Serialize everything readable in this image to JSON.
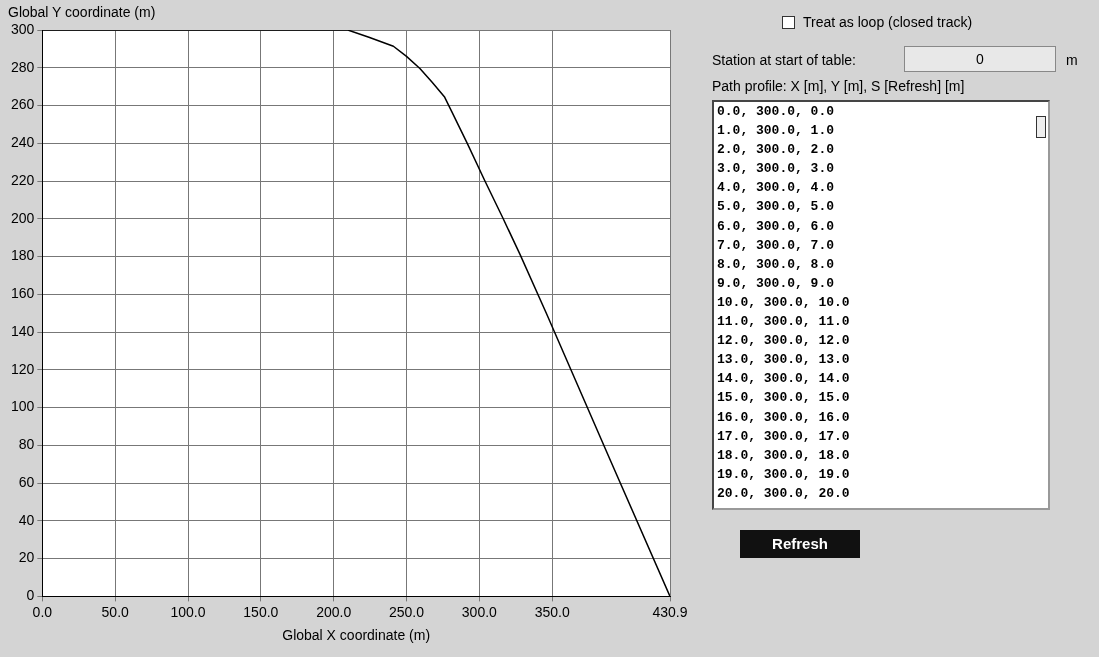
{
  "chart_data": {
    "type": "line",
    "xlabel": "Global X coordinate (m)",
    "ylabel": "Global Y coordinate (m)",
    "x": [
      0,
      100,
      209.7,
      224.2,
      241,
      250,
      259.2,
      267.6,
      276,
      280.9,
      291.8,
      303.6,
      316,
      328,
      346,
      390,
      430.9
    ],
    "series": [
      {
        "color": "#000000",
        "values": [
          300,
          300,
          300,
          296.2,
          291.4,
          286,
          279.6,
          272.3,
          264.7,
          257,
          239.8,
          220.4,
          200.7,
          181,
          150,
          72,
          0
        ]
      }
    ],
    "xlim": [
      0,
      430.9
    ],
    "xticks": [
      {
        "value": 0,
        "label": "0.0"
      },
      {
        "value": 50,
        "label": "50.0"
      },
      {
        "value": 100,
        "label": "100.0"
      },
      {
        "value": 150,
        "label": "150.0"
      },
      {
        "value": 200,
        "label": "200.0"
      },
      {
        "value": 250,
        "label": "250.0"
      },
      {
        "value": 300,
        "label": "300.0"
      },
      {
        "value": 350,
        "label": "350.0"
      },
      {
        "value": 430.9,
        "label": "430.9"
      }
    ],
    "ylim": [
      0,
      300
    ],
    "yticks": [
      0,
      20,
      40,
      60,
      80,
      100,
      120,
      140,
      160,
      180,
      200,
      220,
      240,
      260,
      280,
      300
    ],
    "grid": true,
    "legend": false,
    "marker": "none",
    "line_style": "solid",
    "annotations": [
      "Treat as loop (closed track)",
      "Station at start of table:",
      "0",
      "m",
      "Path profile: X [m], Y [m], S [Refresh] [m]",
      "0.0, 300.0, 0.0",
      "1.0, 300.0, 1.0",
      "2.0, 300.0, 2.0",
      "3.0, 300.0, 3.0",
      "4.0, 300.0, 4.0",
      "5.0, 300.0, 5.0",
      "6.0, 300.0, 6.0",
      "7.0, 300.0, 7.0",
      "8.0, 300.0, 8.0",
      "9.0, 300.0, 9.0",
      "10.0, 300.0, 10.0",
      "11.0, 300.0, 11.0",
      "12.0, 300.0, 12.0",
      "13.0, 300.0, 13.0",
      "14.0, 300.0, 14.0",
      "15.0, 300.0, 15.0",
      "16.0, 300.0, 16.0",
      "17.0, 300.0, 17.0",
      "18.0, 300.0, 18.0",
      "19.0, 300.0, 19.0",
      "20.0, 300.0, 20.0",
      "Refresh"
    ]
  }
}
